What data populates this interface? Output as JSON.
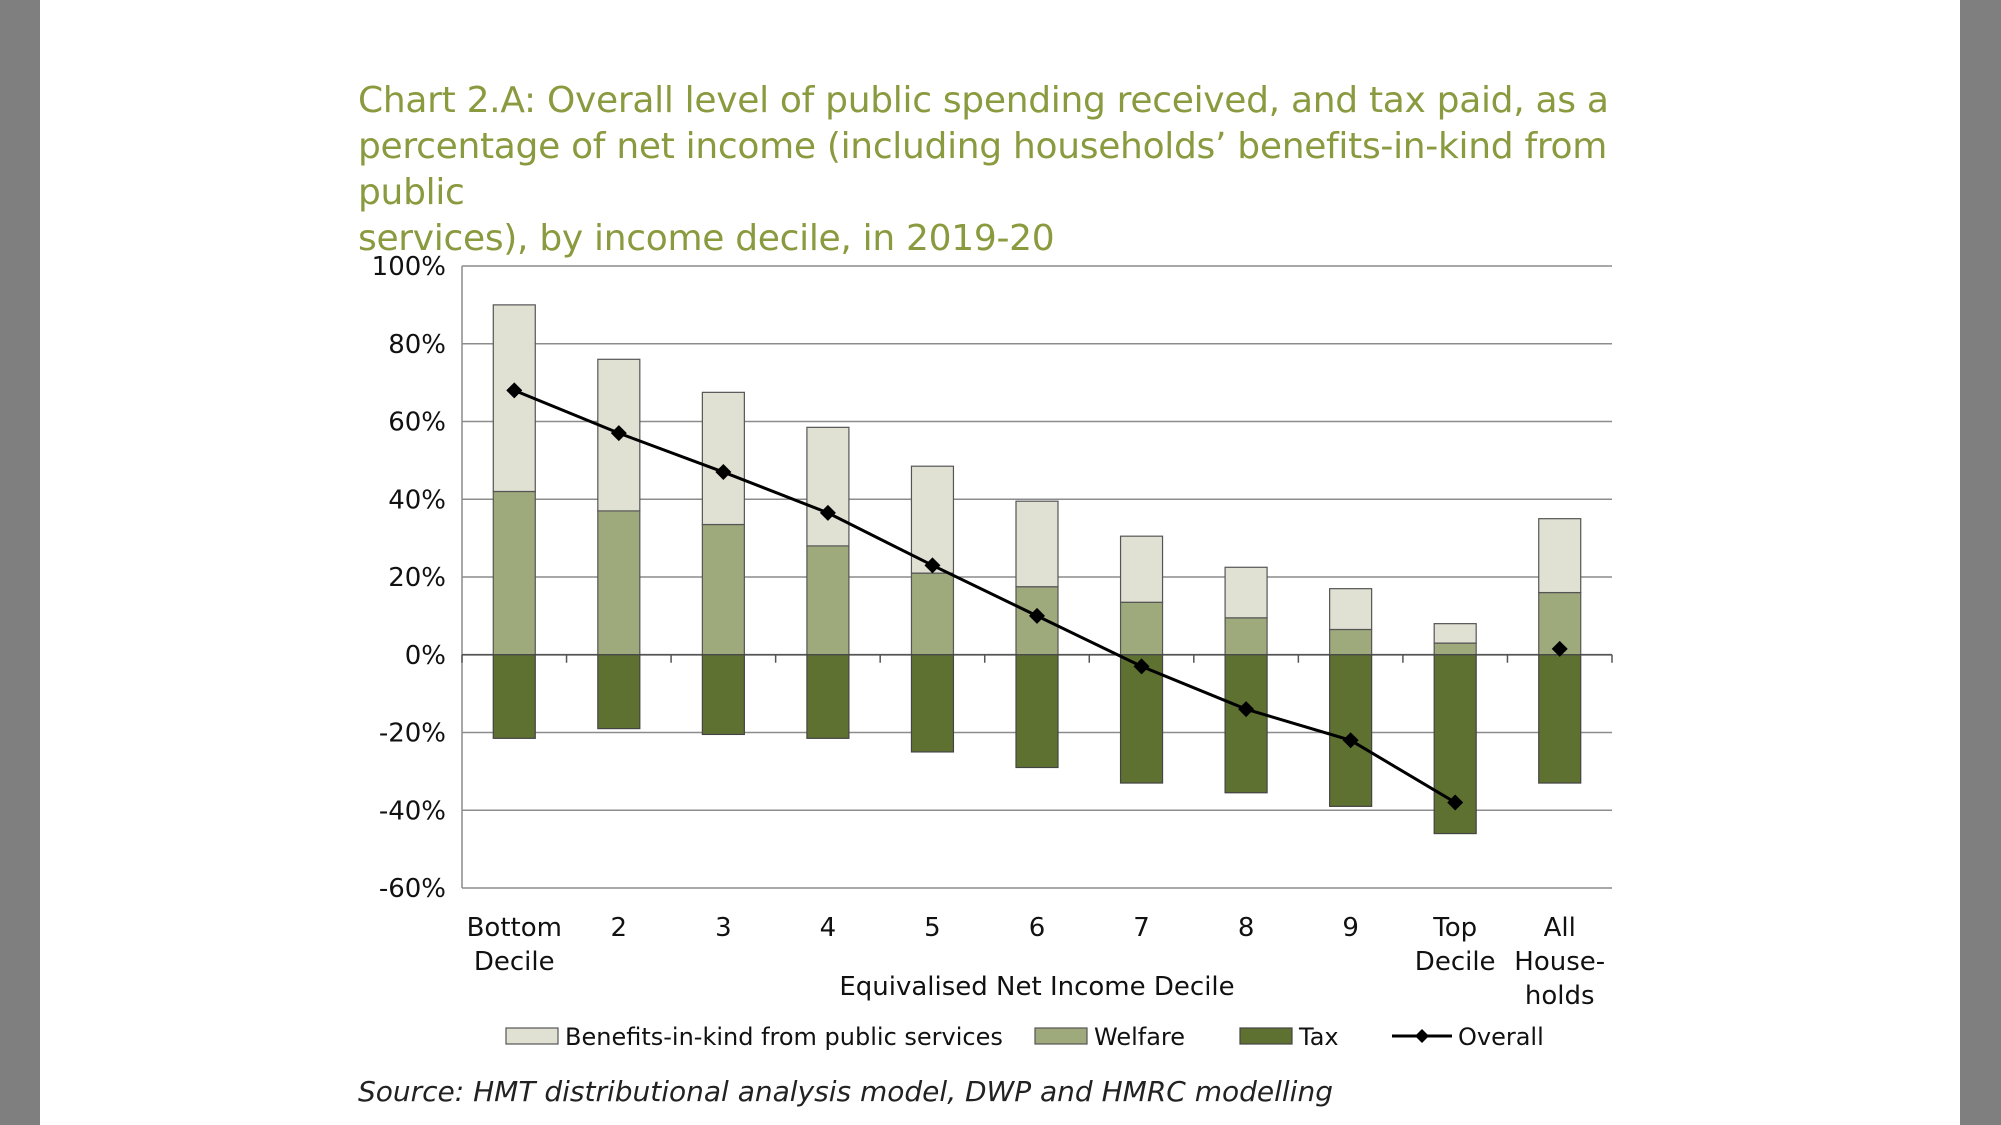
{
  "chart_data": {
    "type": "bar",
    "stacked": true,
    "title_lines": [
      "Chart 2.A: Overall level of public spending received, and tax paid, as a",
      "percentage of net income (including households’ benefits-in-kind from public",
      "services), by income decile, in 2019-20"
    ],
    "xlabel": "Equivalised Net Income Decile",
    "ylabel": "",
    "ylim": [
      -60,
      100
    ],
    "yticks": [
      -60,
      -40,
      -20,
      0,
      20,
      40,
      60,
      80,
      100
    ],
    "ytick_labels": [
      "-60%",
      "-40%",
      "-20%",
      "0%",
      "20%",
      "40%",
      "60%",
      "80%",
      "100%"
    ],
    "categories": [
      [
        "Bottom",
        "Decile"
      ],
      [
        "2"
      ],
      [
        "3"
      ],
      [
        "4"
      ],
      [
        "5"
      ],
      [
        "6"
      ],
      [
        "7"
      ],
      [
        "8"
      ],
      [
        "9"
      ],
      [
        "Top",
        "Decile"
      ],
      [
        "All",
        "House-",
        "holds"
      ]
    ],
    "series": [
      {
        "name": "Benefits-in-kind from public services",
        "type": "bar",
        "color": "#e0e1d3",
        "values": [
          48,
          39,
          34,
          30.5,
          27.5,
          22,
          17,
          13,
          10.5,
          5,
          19
        ]
      },
      {
        "name": "Welfare",
        "type": "bar",
        "color": "#9ea97c",
        "values": [
          42,
          37,
          33.5,
          28,
          21,
          17.5,
          13.5,
          9.5,
          6.5,
          3,
          16
        ]
      },
      {
        "name": "Tax",
        "type": "bar",
        "color": "#5e7131",
        "values": [
          -21.5,
          -19,
          -20.5,
          -21.5,
          -25,
          -29,
          -33,
          -35.5,
          -39,
          -46,
          -33
        ]
      },
      {
        "name": "Overall",
        "type": "line",
        "color": "#000000",
        "values": [
          68,
          57,
          47,
          36.5,
          23,
          10,
          -3,
          -14,
          -22,
          -38,
          null
        ],
        "extra_points": [
          {
            "index": 10,
            "value": 1.5
          }
        ]
      }
    ],
    "legend": "bottom"
  },
  "source": "Source: HMT distributional analysis model, DWP and HMRC modelling"
}
